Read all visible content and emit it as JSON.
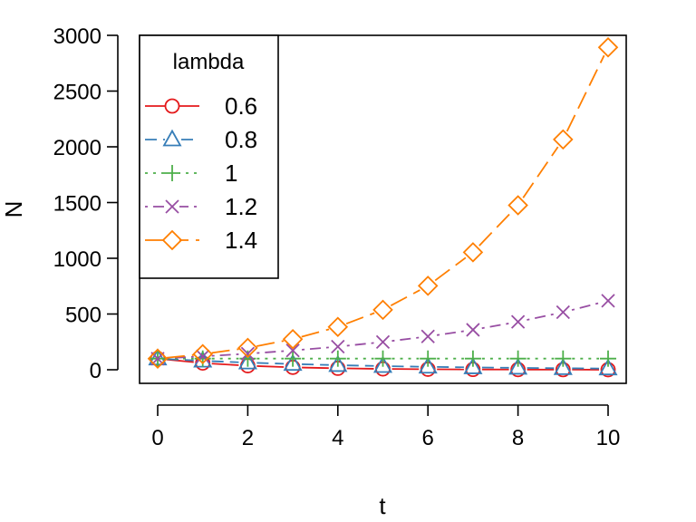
{
  "chart_data": {
    "type": "line",
    "title": "",
    "xlabel": "t",
    "ylabel": "N",
    "xlim": [
      0,
      10
    ],
    "ylim": [
      0,
      3000
    ],
    "x": [
      0,
      1,
      2,
      3,
      4,
      5,
      6,
      7,
      8,
      9,
      10
    ],
    "x_ticks": [
      0,
      2,
      4,
      6,
      8,
      10
    ],
    "y_ticks": [
      0,
      500,
      1000,
      1500,
      2000,
      2500,
      3000
    ],
    "grid": false,
    "legend": {
      "title": "lambda",
      "position": "top-left"
    },
    "series": [
      {
        "name": "0.6",
        "color": "#E41A1C",
        "marker": "circle",
        "dash": "solid",
        "values": [
          100,
          60,
          36,
          21.6,
          12.96,
          7.78,
          4.67,
          2.8,
          1.68,
          1.01,
          0.6
        ]
      },
      {
        "name": "0.8",
        "color": "#377EB8",
        "marker": "triangle",
        "dash": "dashed",
        "values": [
          100,
          80,
          64,
          51.2,
          40.96,
          32.77,
          26.21,
          20.97,
          16.78,
          13.42,
          10.74
        ]
      },
      {
        "name": "1",
        "color": "#4DAF4A",
        "marker": "plus",
        "dash": "dotted",
        "values": [
          100,
          100,
          100,
          100,
          100,
          100,
          100,
          100,
          100,
          100,
          100
        ]
      },
      {
        "name": "1.2",
        "color": "#984EA3",
        "marker": "cross",
        "dash": "dotdash",
        "values": [
          100,
          120,
          144,
          172.8,
          207.36,
          248.83,
          298.6,
          358.32,
          429.98,
          515.98,
          619.17
        ]
      },
      {
        "name": "1.4",
        "color": "#FF7F00",
        "marker": "diamond",
        "dash": "longdash",
        "values": [
          100,
          140,
          196,
          274.4,
          384.16,
          537.82,
          752.95,
          1054.14,
          1475.79,
          2066.11,
          2892.55
        ]
      }
    ]
  }
}
